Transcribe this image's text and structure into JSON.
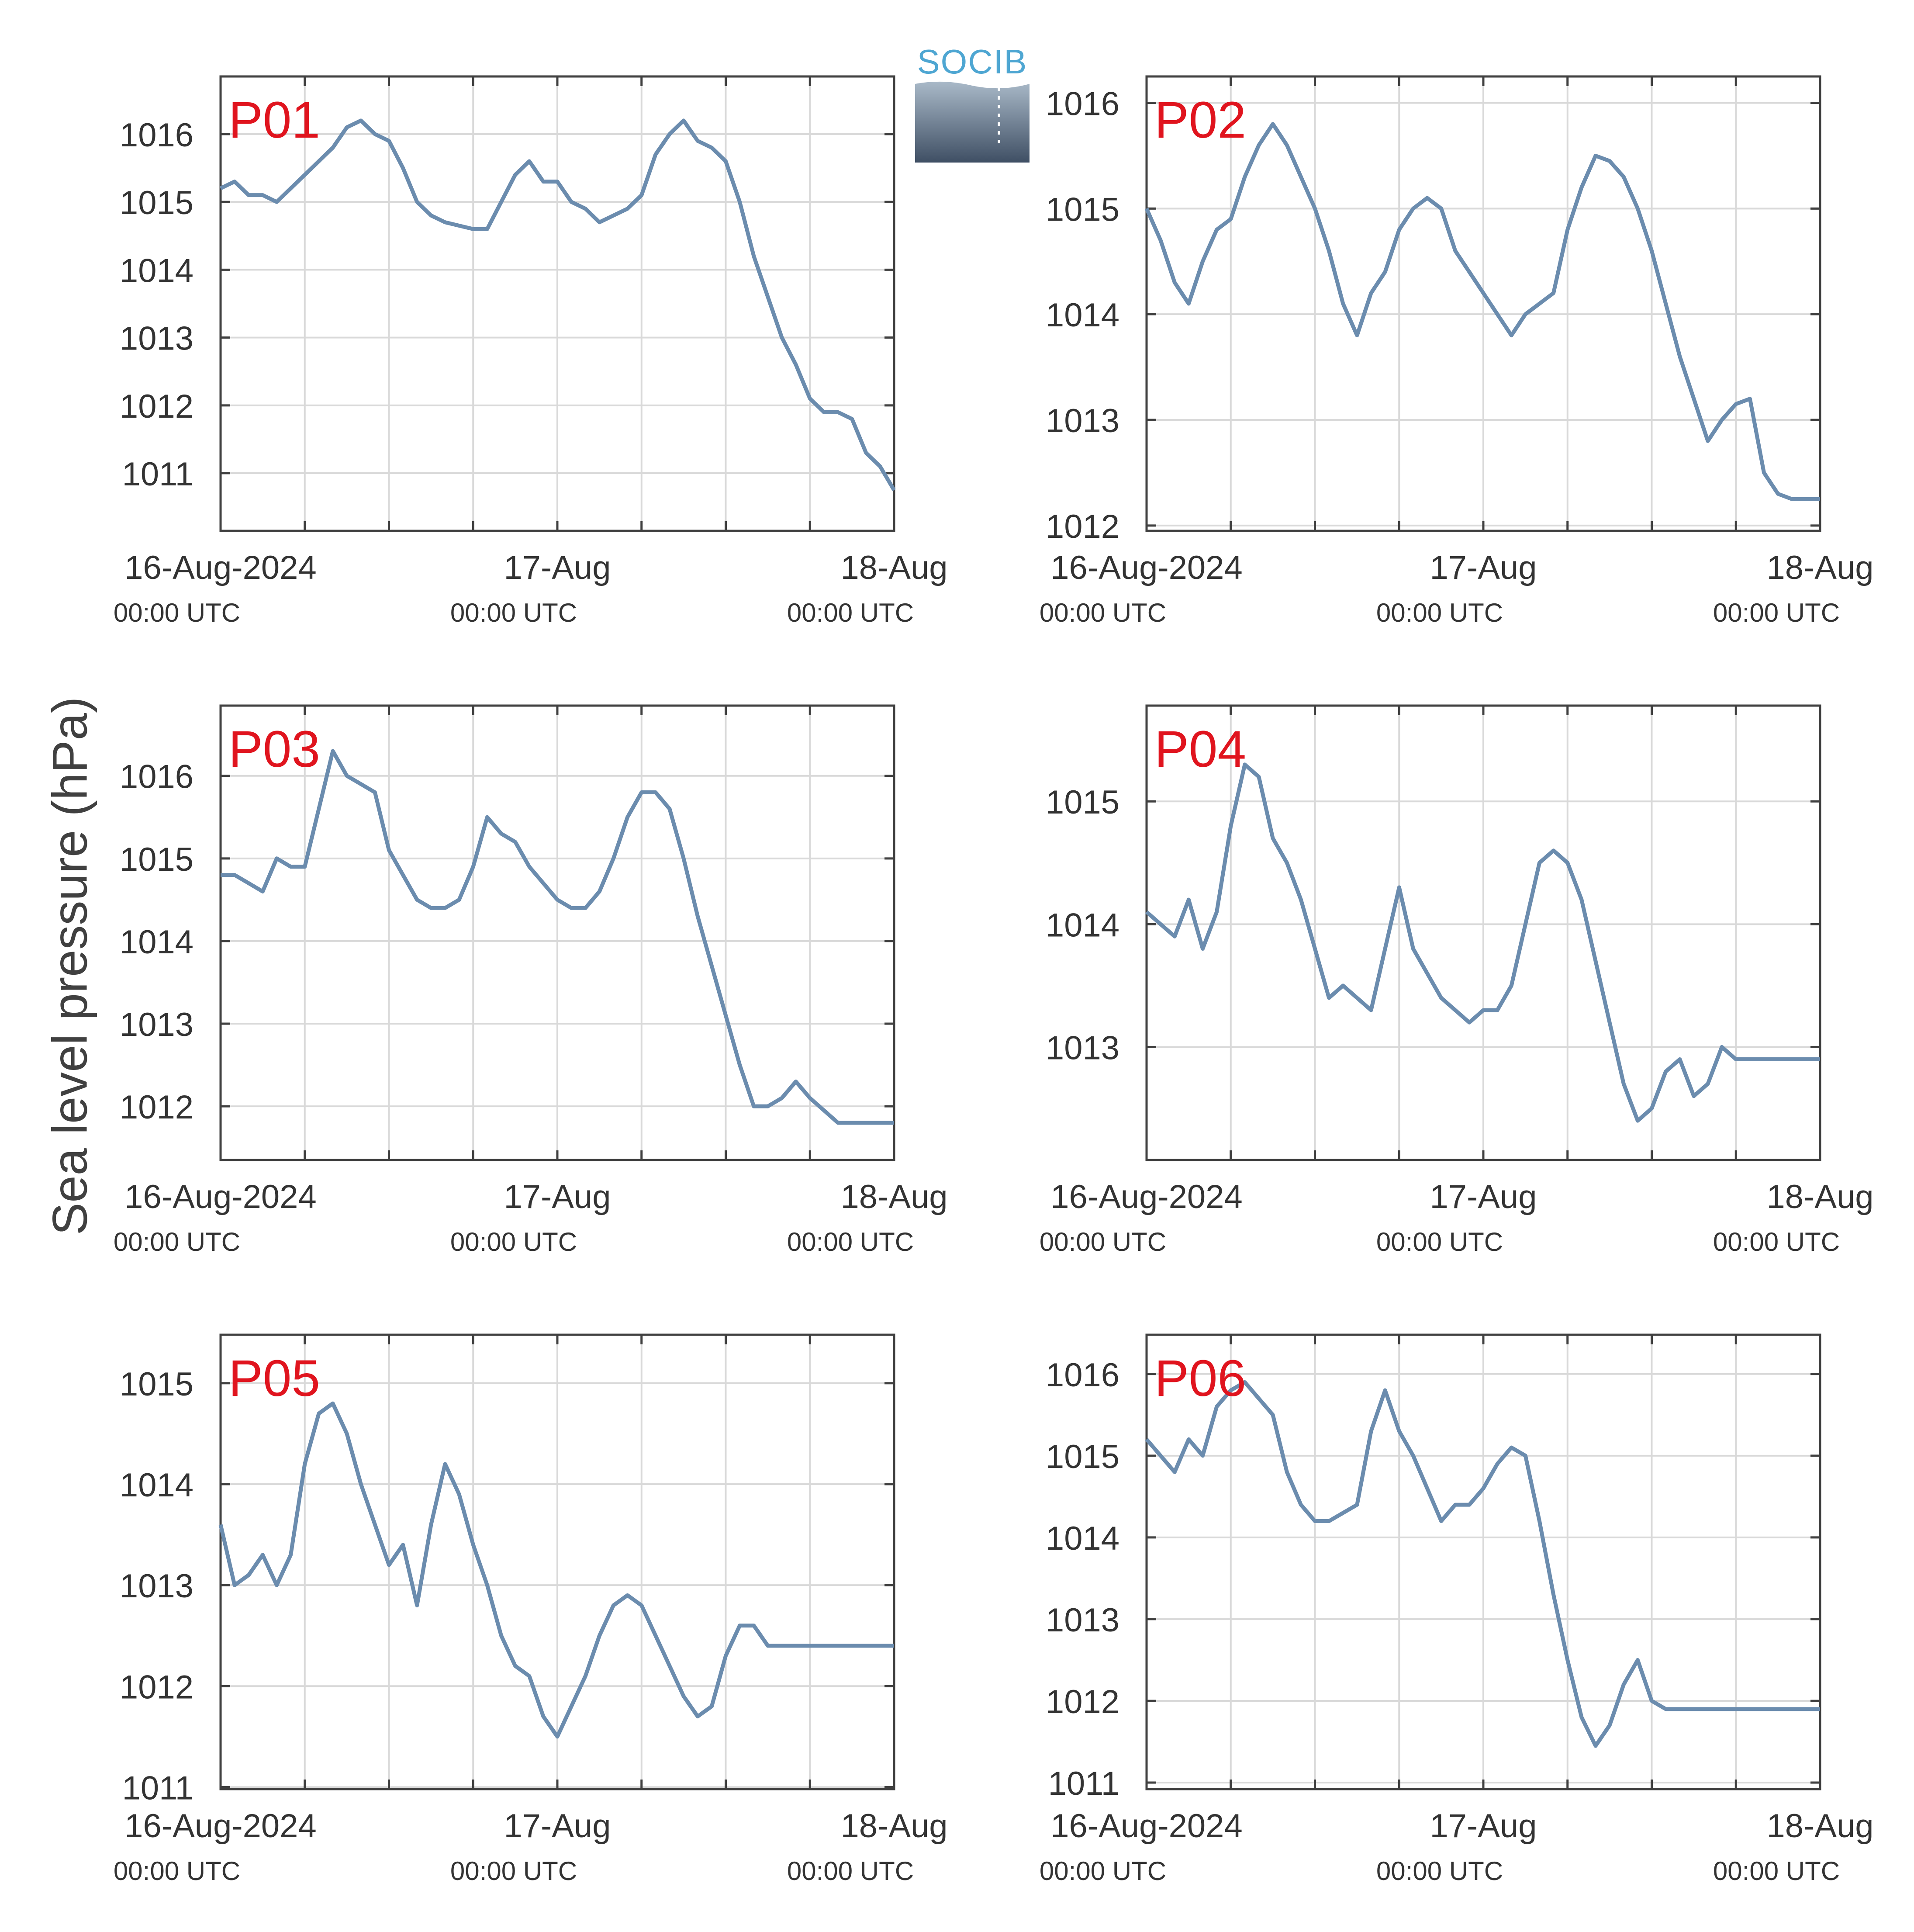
{
  "chart_data": [
    {
      "type": "line",
      "title": "P01",
      "ylim": [
        1010.15,
        1016.85
      ],
      "yticks": [
        1011,
        1012,
        1013,
        1014,
        1015,
        1016
      ],
      "x_range": [
        "16-Aug-2024 00:00 UTC",
        "18-Aug-2024 00:00 UTC"
      ],
      "xticks": [
        {
          "line1": "16-Aug-2024",
          "line2": "00:00 UTC"
        },
        {
          "line1": "17-Aug",
          "line2": "00:00 UTC"
        },
        {
          "line1": "18-Aug",
          "line2": "00:00 UTC"
        }
      ],
      "series": [
        {
          "x_hours": [
            0,
            1,
            2,
            3,
            4,
            5,
            6,
            7,
            8,
            9,
            10,
            11,
            12,
            13,
            14,
            15,
            16,
            17,
            18,
            19,
            20,
            21,
            22,
            23,
            24,
            25,
            26,
            27,
            28,
            29,
            30,
            31,
            32,
            33,
            34,
            35,
            36,
            37,
            38,
            39,
            40,
            41,
            42,
            43,
            44,
            45,
            46,
            47,
            48
          ],
          "values": [
            1015.2,
            1015.3,
            1015.1,
            1015.1,
            1015.0,
            1015.2,
            1015.4,
            1015.6,
            1015.8,
            1016.1,
            1016.2,
            1016.0,
            1015.9,
            1015.5,
            1015.0,
            1014.8,
            1014.7,
            1014.65,
            1014.6,
            1014.6,
            1015.0,
            1015.4,
            1015.6,
            1015.3,
            1015.3,
            1015.0,
            1014.9,
            1014.7,
            1014.8,
            1014.9,
            1015.1,
            1015.7,
            1016.0,
            1016.2,
            1015.9,
            1015.8,
            1015.6,
            1015.0,
            1014.2,
            1013.6,
            1013.0,
            1012.6,
            1012.1,
            1011.9,
            1011.9,
            1011.8,
            1011.3,
            1011.1,
            1010.75
          ]
        }
      ]
    },
    {
      "type": "line",
      "title": "P02",
      "ylim": [
        1011.95,
        1016.25
      ],
      "yticks": [
        1012,
        1013,
        1014,
        1015,
        1016
      ],
      "x_range": [
        "16-Aug-2024 00:00 UTC",
        "18-Aug-2024 00:00 UTC"
      ],
      "xticks": [
        {
          "line1": "16-Aug-2024",
          "line2": "00:00 UTC"
        },
        {
          "line1": "17-Aug",
          "line2": "00:00 UTC"
        },
        {
          "line1": "18-Aug",
          "line2": "00:00 UTC"
        }
      ],
      "series": [
        {
          "x_hours": [
            0,
            1,
            2,
            3,
            4,
            5,
            6,
            7,
            8,
            9,
            10,
            11,
            12,
            13,
            14,
            15,
            16,
            17,
            18,
            19,
            20,
            21,
            22,
            23,
            24,
            25,
            26,
            27,
            28,
            29,
            30,
            31,
            32,
            33,
            34,
            35,
            36,
            37,
            38,
            39,
            40,
            41,
            42,
            43,
            44,
            45,
            46,
            47,
            48
          ],
          "values": [
            1015.0,
            1014.7,
            1014.3,
            1014.1,
            1014.5,
            1014.8,
            1014.9,
            1015.3,
            1015.6,
            1015.8,
            1015.6,
            1015.3,
            1015.0,
            1014.6,
            1014.1,
            1013.8,
            1014.2,
            1014.4,
            1014.8,
            1015.0,
            1015.1,
            1015.0,
            1014.6,
            1014.4,
            1014.2,
            1014.0,
            1013.8,
            1014.0,
            1014.1,
            1014.2,
            1014.8,
            1015.2,
            1015.5,
            1015.45,
            1015.3,
            1015.0,
            1014.6,
            1014.1,
            1013.6,
            1013.2,
            1012.8,
            1013.0,
            1013.15,
            1013.2,
            1012.5,
            1012.3,
            1012.25,
            1012.25,
            1012.25
          ]
        }
      ]
    },
    {
      "type": "line",
      "title": "P03",
      "ylim": [
        1011.35,
        1016.85
      ],
      "yticks": [
        1012,
        1013,
        1014,
        1015,
        1016
      ],
      "x_range": [
        "16-Aug-2024 00:00 UTC",
        "18-Aug-2024 00:00 UTC"
      ],
      "xticks": [
        {
          "line1": "16-Aug-2024",
          "line2": "00:00 UTC"
        },
        {
          "line1": "17-Aug",
          "line2": "00:00 UTC"
        },
        {
          "line1": "18-Aug",
          "line2": "00:00 UTC"
        }
      ],
      "series": [
        {
          "x_hours": [
            0,
            1,
            2,
            3,
            4,
            5,
            6,
            7,
            8,
            9,
            10,
            11,
            12,
            13,
            14,
            15,
            16,
            17,
            18,
            19,
            20,
            21,
            22,
            23,
            24,
            25,
            26,
            27,
            28,
            29,
            30,
            31,
            32,
            33,
            34,
            35,
            36,
            37,
            38,
            39,
            40,
            41,
            42,
            43,
            44,
            45,
            46,
            47,
            48
          ],
          "values": [
            1014.8,
            1014.8,
            1014.7,
            1014.6,
            1015.0,
            1014.9,
            1014.9,
            1015.6,
            1016.3,
            1016.0,
            1015.9,
            1015.8,
            1015.1,
            1014.8,
            1014.5,
            1014.4,
            1014.4,
            1014.5,
            1014.9,
            1015.5,
            1015.3,
            1015.2,
            1014.9,
            1014.7,
            1014.5,
            1014.4,
            1014.4,
            1014.6,
            1015.0,
            1015.5,
            1015.8,
            1015.8,
            1015.6,
            1015.0,
            1014.3,
            1013.7,
            1013.1,
            1012.5,
            1012.0,
            1012.0,
            1012.1,
            1012.3,
            1012.1,
            1011.95,
            1011.8,
            1011.8,
            1011.8,
            1011.8,
            1011.8
          ]
        }
      ]
    },
    {
      "type": "line",
      "title": "P04",
      "ylim": [
        1012.08,
        1015.78
      ],
      "yticks": [
        1013,
        1014,
        1015
      ],
      "x_range": [
        "16-Aug-2024 00:00 UTC",
        "18-Aug-2024 00:00 UTC"
      ],
      "xticks": [
        {
          "line1": "16-Aug-2024",
          "line2": "00:00 UTC"
        },
        {
          "line1": "17-Aug",
          "line2": "00:00 UTC"
        },
        {
          "line1": "18-Aug",
          "line2": "00:00 UTC"
        }
      ],
      "series": [
        {
          "x_hours": [
            0,
            1,
            2,
            3,
            4,
            5,
            6,
            7,
            8,
            9,
            10,
            11,
            12,
            13,
            14,
            15,
            16,
            17,
            18,
            19,
            20,
            21,
            22,
            23,
            24,
            25,
            26,
            27,
            28,
            29,
            30,
            31,
            32,
            33,
            34,
            35,
            36,
            37,
            38,
            39,
            40,
            41,
            42,
            43,
            44,
            45,
            46,
            47,
            48
          ],
          "values": [
            1014.1,
            1014.0,
            1013.9,
            1014.2,
            1013.8,
            1014.1,
            1014.8,
            1015.3,
            1015.2,
            1014.7,
            1014.5,
            1014.2,
            1013.8,
            1013.4,
            1013.5,
            1013.4,
            1013.3,
            1013.8,
            1014.3,
            1013.8,
            1013.6,
            1013.4,
            1013.3,
            1013.2,
            1013.3,
            1013.3,
            1013.5,
            1014.0,
            1014.5,
            1014.6,
            1014.5,
            1014.2,
            1013.7,
            1013.2,
            1012.7,
            1012.4,
            1012.5,
            1012.8,
            1012.9,
            1012.6,
            1012.7,
            1013.0,
            1012.9,
            1012.9,
            1012.9,
            1012.9,
            1012.9,
            1012.9,
            1012.9
          ]
        }
      ]
    },
    {
      "type": "line",
      "title": "P05",
      "ylim": [
        1010.98,
        1015.48
      ],
      "yticks": [
        1011,
        1012,
        1013,
        1014,
        1015
      ],
      "x_range": [
        "16-Aug-2024 00:00 UTC",
        "18-Aug-2024 00:00 UTC"
      ],
      "xticks": [
        {
          "line1": "16-Aug-2024",
          "line2": "00:00 UTC"
        },
        {
          "line1": "17-Aug",
          "line2": "00:00 UTC"
        },
        {
          "line1": "18-Aug",
          "line2": "00:00 UTC"
        }
      ],
      "series": [
        {
          "x_hours": [
            0,
            1,
            2,
            3,
            4,
            5,
            6,
            7,
            8,
            9,
            10,
            11,
            12,
            13,
            14,
            15,
            16,
            17,
            18,
            19,
            20,
            21,
            22,
            23,
            24,
            25,
            26,
            27,
            28,
            29,
            30,
            31,
            32,
            33,
            34,
            35,
            36,
            37,
            38,
            39,
            40,
            41,
            42,
            43,
            44,
            45,
            46,
            47,
            48
          ],
          "values": [
            1013.6,
            1013.0,
            1013.1,
            1013.3,
            1013.0,
            1013.3,
            1014.2,
            1014.7,
            1014.8,
            1014.5,
            1014.0,
            1013.6,
            1013.2,
            1013.4,
            1012.8,
            1013.6,
            1014.2,
            1013.9,
            1013.4,
            1013.0,
            1012.5,
            1012.2,
            1012.1,
            1011.7,
            1011.5,
            1011.8,
            1012.1,
            1012.5,
            1012.8,
            1012.9,
            1012.8,
            1012.5,
            1012.2,
            1011.9,
            1011.7,
            1011.8,
            1012.3,
            1012.6,
            1012.6,
            1012.4,
            1012.4,
            1012.4,
            1012.4,
            1012.4,
            1012.4,
            1012.4,
            1012.4,
            1012.4,
            1012.4
          ]
        }
      ]
    },
    {
      "type": "line",
      "title": "P06",
      "ylim": [
        1010.92,
        1016.48
      ],
      "yticks": [
        1011,
        1012,
        1013,
        1014,
        1015,
        1016
      ],
      "x_range": [
        "16-Aug-2024 00:00 UTC",
        "18-Aug-2024 00:00 UTC"
      ],
      "xticks": [
        {
          "line1": "16-Aug-2024",
          "line2": "00:00 UTC"
        },
        {
          "line1": "17-Aug",
          "line2": "00:00 UTC"
        },
        {
          "line1": "18-Aug",
          "line2": "00:00 UTC"
        }
      ],
      "series": [
        {
          "x_hours": [
            0,
            1,
            2,
            3,
            4,
            5,
            6,
            7,
            8,
            9,
            10,
            11,
            12,
            13,
            14,
            15,
            16,
            17,
            18,
            19,
            20,
            21,
            22,
            23,
            24,
            25,
            26,
            27,
            28,
            29,
            30,
            31,
            32,
            33,
            34,
            35,
            36,
            37,
            38,
            39,
            40,
            41,
            42,
            43,
            44,
            45,
            46,
            47,
            48
          ],
          "values": [
            1015.2,
            1015.0,
            1014.8,
            1015.2,
            1015.0,
            1015.6,
            1015.8,
            1015.9,
            1015.7,
            1015.5,
            1014.8,
            1014.4,
            1014.2,
            1014.2,
            1014.3,
            1014.4,
            1015.3,
            1015.8,
            1015.3,
            1015.0,
            1014.6,
            1014.2,
            1014.4,
            1014.4,
            1014.6,
            1014.9,
            1015.1,
            1015.0,
            1014.2,
            1013.3,
            1012.5,
            1011.8,
            1011.45,
            1011.7,
            1012.2,
            1012.5,
            1012.0,
            1011.9,
            1011.9,
            1011.9,
            1011.9,
            1011.9,
            1011.9,
            1011.9,
            1011.9,
            1011.9,
            1011.9,
            1011.9,
            1011.9
          ]
        }
      ]
    }
  ],
  "ylabel": "Sea level pressure (hPa)",
  "logo": {
    "text": "SOCIB"
  },
  "colors": {
    "line": "#6b8cae",
    "panel_label": "#e0141e",
    "axes": "#404040",
    "grid": "#d9d9d9",
    "text": "#333333"
  },
  "x_hours_total": 48,
  "x_minor_step_hours": 6
}
